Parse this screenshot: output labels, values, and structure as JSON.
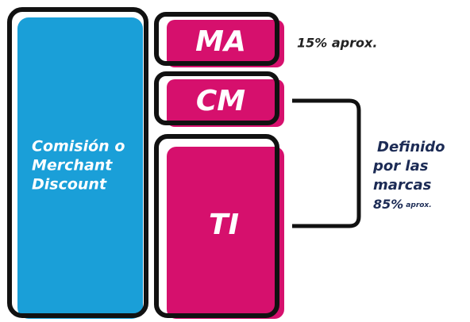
{
  "blocks": {
    "merchant": {
      "lines": [
        "Comisión o",
        "Merchant",
        "Discount"
      ]
    },
    "ma": {
      "label": "MA",
      "note": "15% aprox."
    },
    "cm": {
      "label": "CM"
    },
    "ti": {
      "label": "TI"
    }
  },
  "bracket_note": {
    "lines": [
      "Definido",
      "por las",
      "marcas"
    ],
    "percent": "85%",
    "suffix": "aprox."
  }
}
